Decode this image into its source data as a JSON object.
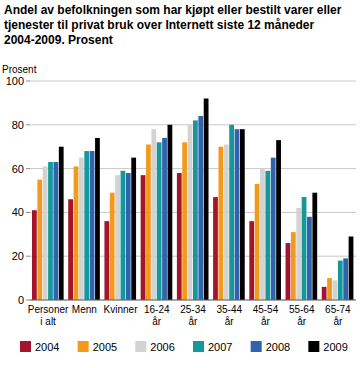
{
  "chart_data": {
    "type": "bar",
    "title": "Andel av befolkningen som har kjøpt eller bestilt varer eller tjenester til privat bruk over Internett siste 12 måneder 2004-2009. Prosent",
    "y_label": "Prosent",
    "categories": [
      "Personer i alt",
      "Menn",
      "Kvinner",
      "16-24 år",
      "25-34 år",
      "35-44 år",
      "45-54 år",
      "55-64 år",
      "65-74 år"
    ],
    "series": [
      {
        "name": "2004",
        "color": "#a3152c",
        "values": [
          41,
          46,
          36,
          57,
          58,
          47,
          36,
          26,
          6
        ]
      },
      {
        "name": "2005",
        "color": "#f29a1d",
        "values": [
          55,
          61,
          49,
          71,
          72,
          70,
          53,
          31,
          10
        ]
      },
      {
        "name": "2006",
        "color": "#d3d3d3",
        "values": [
          61,
          65,
          57,
          78,
          80,
          71,
          60,
          42,
          9
        ]
      },
      {
        "name": "2007",
        "color": "#16989a",
        "values": [
          63,
          68,
          59,
          72,
          82,
          80,
          59,
          47,
          18
        ]
      },
      {
        "name": "2008",
        "color": "#2e63ad",
        "values": [
          63,
          68,
          58,
          74,
          84,
          78,
          65,
          38,
          19
        ]
      },
      {
        "name": "2009",
        "color": "#000000",
        "values": [
          70,
          74,
          65,
          80,
          92,
          78,
          73,
          49,
          29
        ]
      }
    ],
    "ylim": [
      0,
      100
    ],
    "yticks": [
      0,
      20,
      40,
      60,
      80,
      100
    ],
    "grid": true,
    "legend": "bottom"
  }
}
